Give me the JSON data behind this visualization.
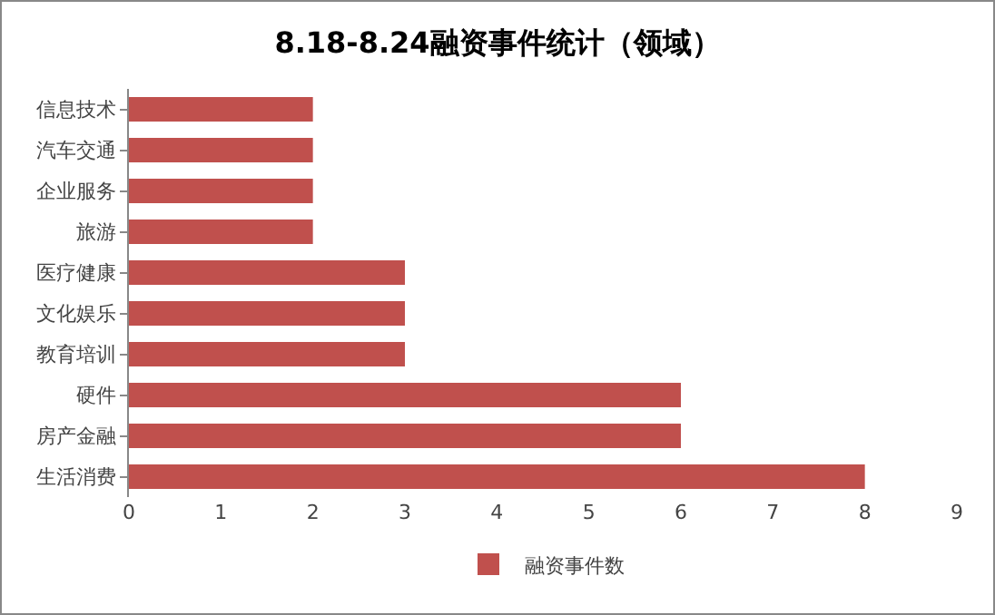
{
  "chart_data": {
    "type": "bar",
    "orientation": "horizontal",
    "title": "8.18-8.24融资事件统计（领域）",
    "categories": [
      "信息技术",
      "汽车交通",
      "企业服务",
      "旅游",
      "医疗健康",
      "文化娱乐",
      "教育培训",
      "硬件",
      "房产金融",
      "生活消费"
    ],
    "series": [
      {
        "name": "融资事件数",
        "color": "#c0504d",
        "values": [
          2,
          2,
          2,
          2,
          3,
          3,
          3,
          6,
          6,
          8
        ]
      }
    ],
    "xlim": [
      0,
      9
    ],
    "xticks": [
      0,
      1,
      2,
      3,
      4,
      5,
      6,
      7,
      8,
      9
    ],
    "legend": "bottom",
    "grid": false
  }
}
